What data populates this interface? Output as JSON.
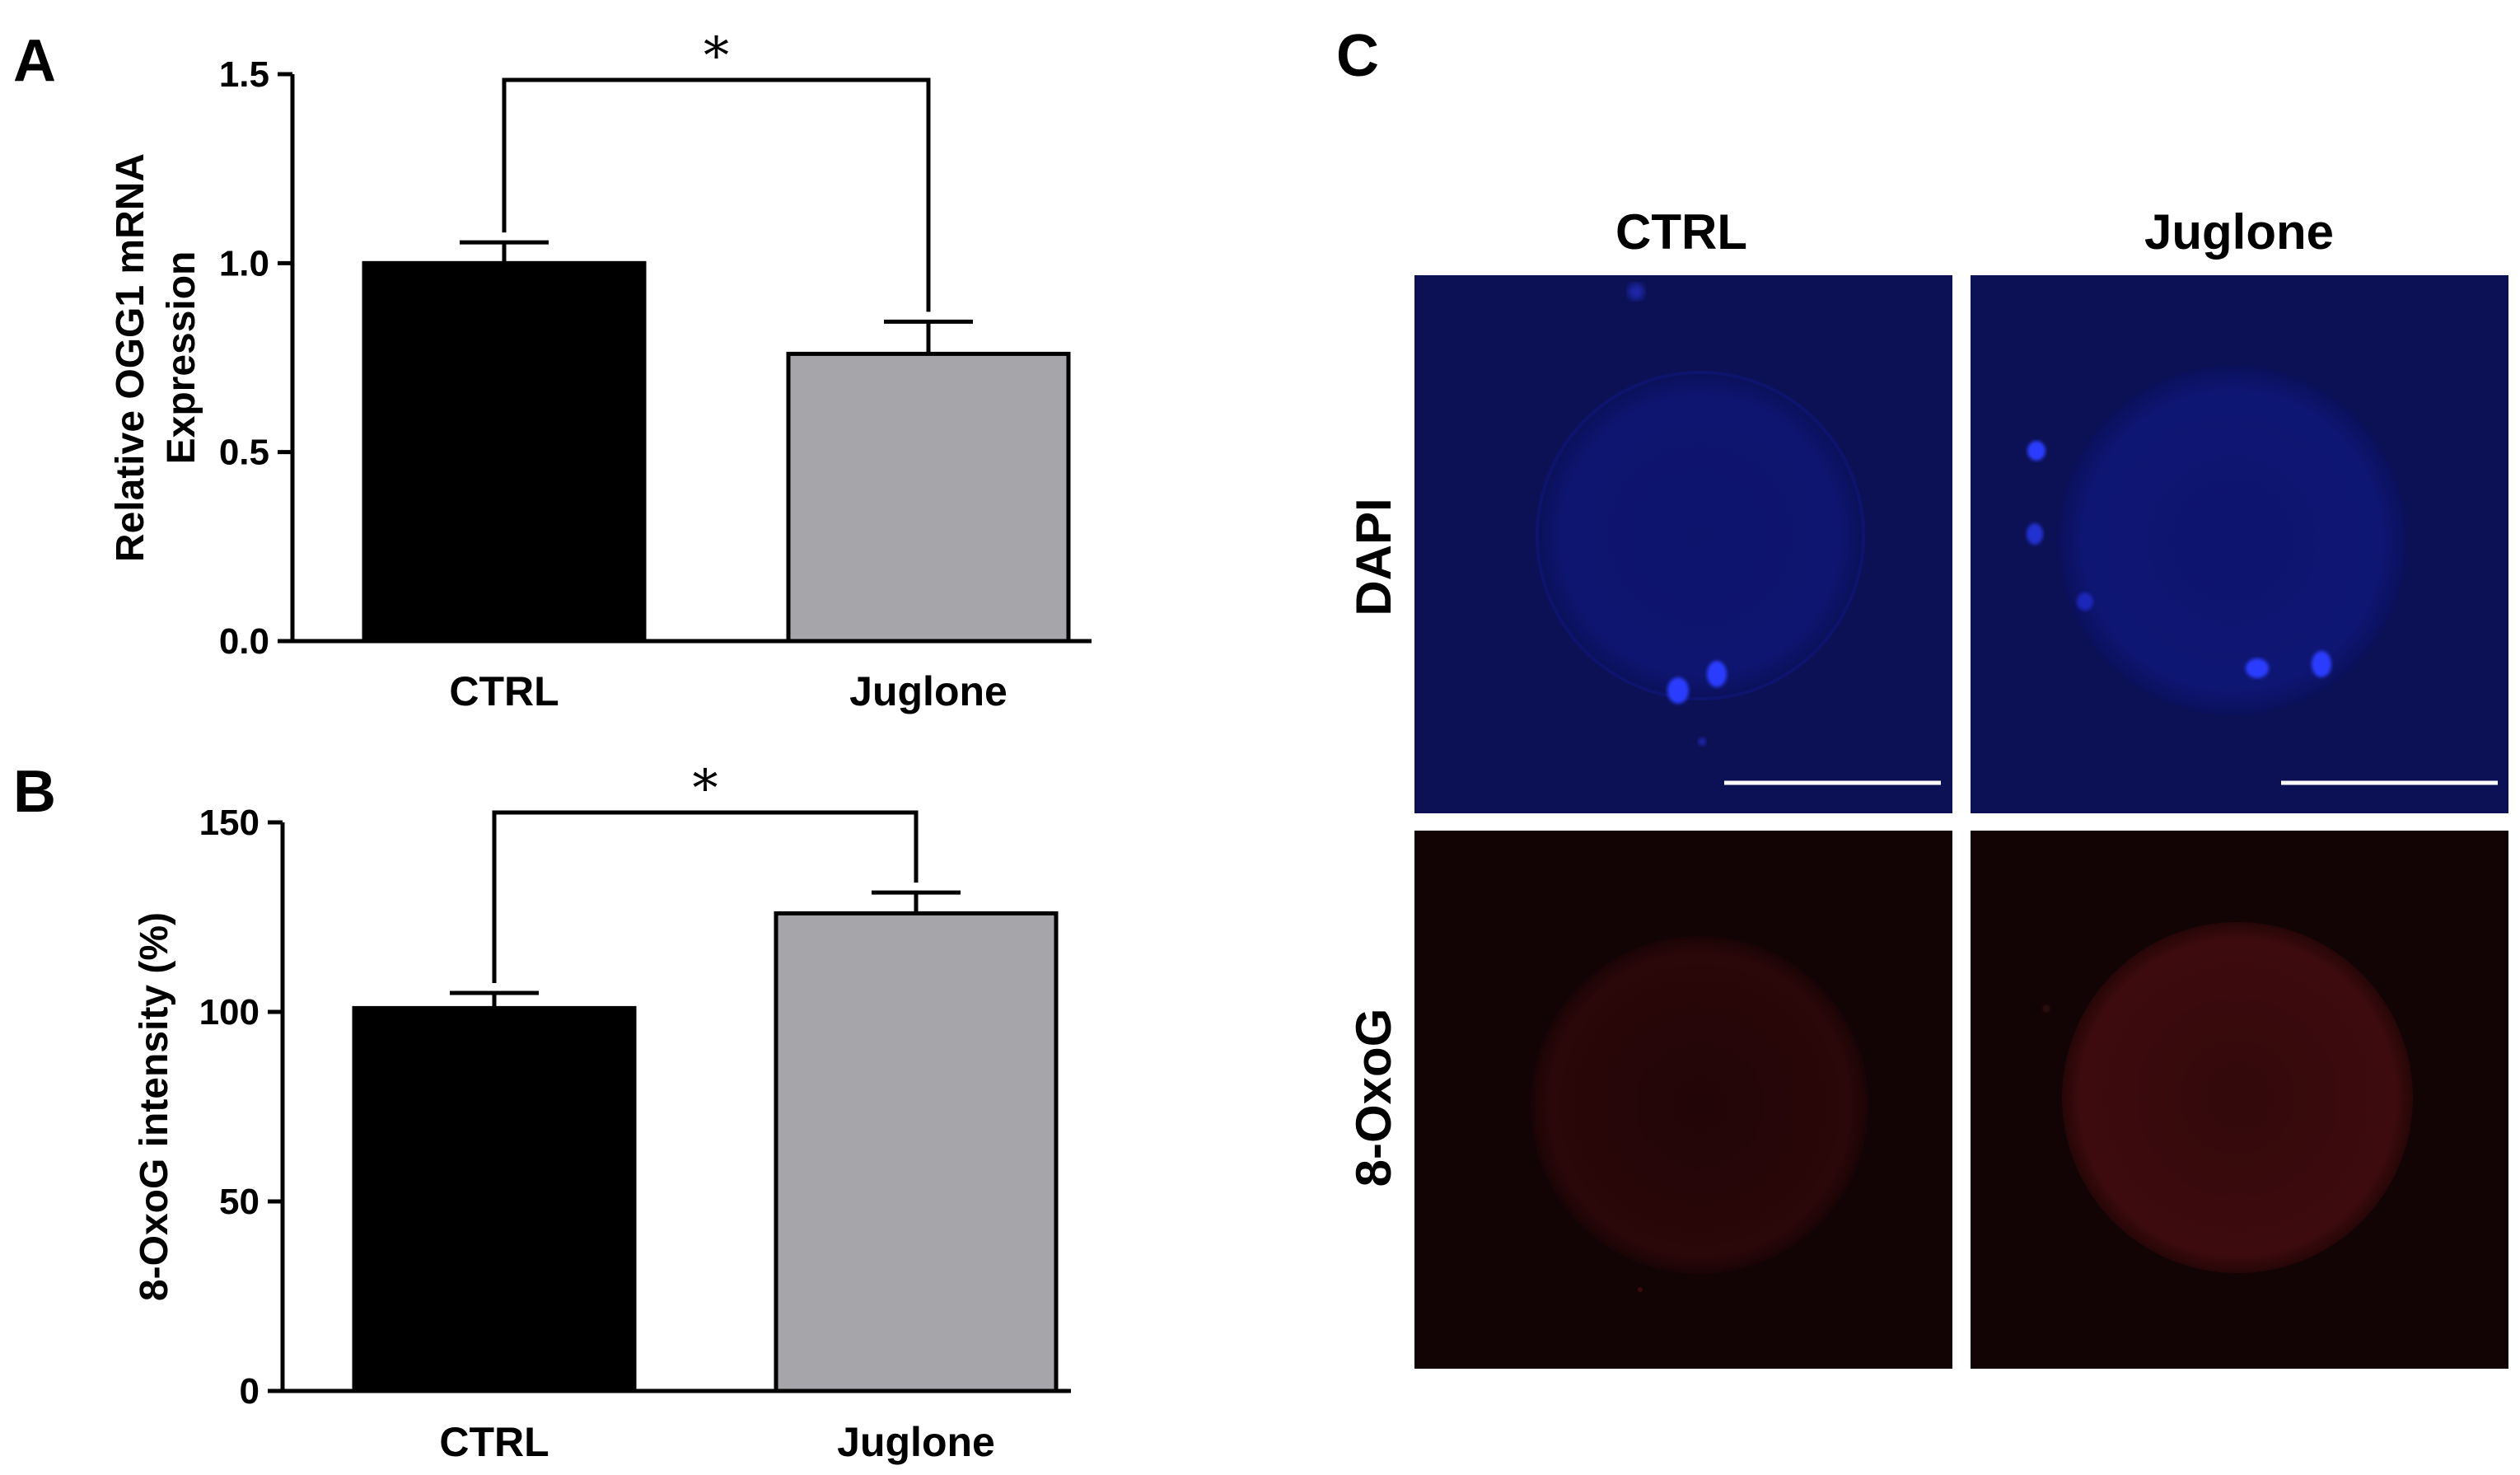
{
  "panels": {
    "a_letter": "A",
    "b_letter": "B",
    "c_letter": "C"
  },
  "chart_data": [
    {
      "type": "bar",
      "panel": "A",
      "categories": [
        "CTRL",
        "Juglone"
      ],
      "values": [
        1.0,
        0.76
      ],
      "errors": [
        0.055,
        0.085
      ],
      "bar_colors": [
        "#000000",
        "#a6a6aa"
      ],
      "ylabel": "Relative OGG1 mRNA Expression",
      "ylabel_lines": [
        "Relative OGG1 mRNA",
        "Expression"
      ],
      "ylim": [
        0,
        1.5
      ],
      "yticks": [
        0,
        0.5,
        1.0,
        1.5
      ],
      "ytick_labels": [
        "0.0",
        "0.5",
        "1.0",
        "1.5"
      ],
      "significance": "*"
    },
    {
      "type": "bar",
      "panel": "B",
      "categories": [
        "CTRL",
        "Juglone"
      ],
      "values": [
        101,
        126
      ],
      "errors": [
        4,
        5.5
      ],
      "bar_colors": [
        "#000000",
        "#a6a6aa"
      ],
      "ylabel": "8-OxoG intensity (%)",
      "ylim": [
        0,
        150
      ],
      "yticks": [
        0,
        50,
        100,
        150
      ],
      "ytick_labels": [
        "0",
        "50",
        "100",
        "150"
      ],
      "significance": "*"
    }
  ],
  "micrographs": {
    "columns": [
      "CTRL",
      "Juglone"
    ],
    "rows": [
      "DAPI",
      "8-OxoG"
    ],
    "dapi_color": "#0c1156",
    "oxog_color": "#120304"
  }
}
